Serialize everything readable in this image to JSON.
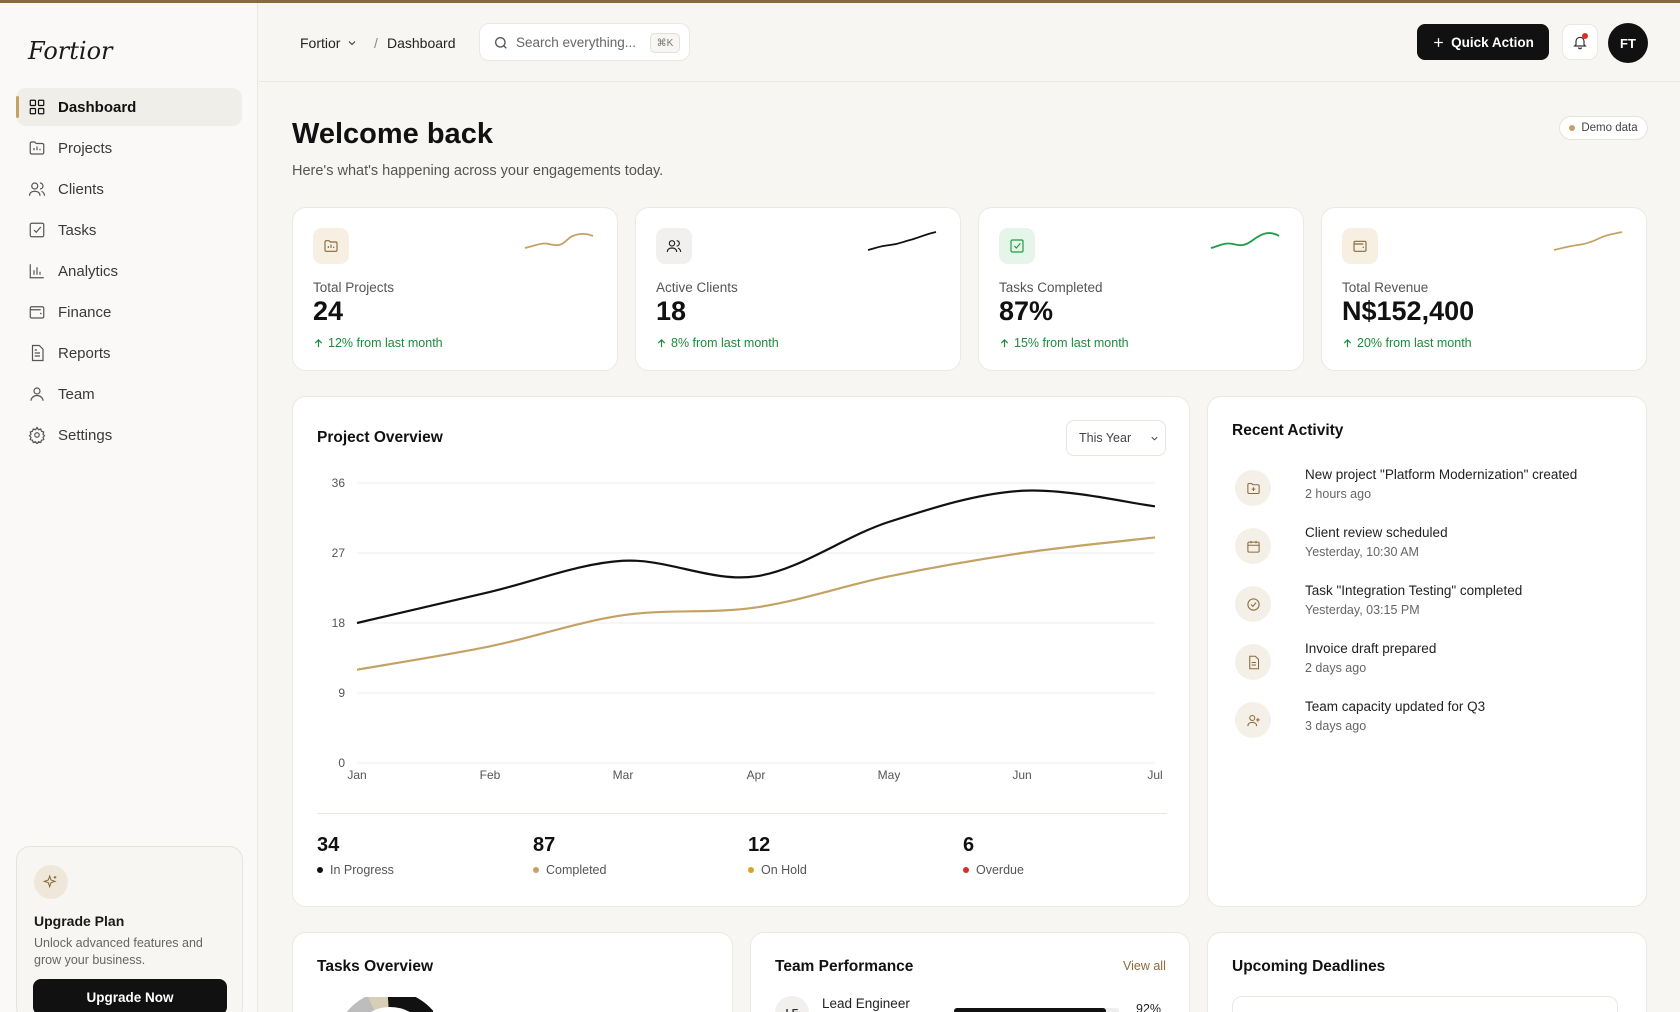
{
  "app": {
    "logo": "Fortior"
  },
  "sidebar": {
    "items": [
      {
        "label": "Dashboard",
        "icon": "grid-icon",
        "active": true
      },
      {
        "label": "Projects",
        "icon": "folder-icon"
      },
      {
        "label": "Clients",
        "icon": "users-icon"
      },
      {
        "label": "Tasks",
        "icon": "checkbox-icon"
      },
      {
        "label": "Analytics",
        "icon": "bar-chart-icon"
      },
      {
        "label": "Finance",
        "icon": "wallet-icon"
      },
      {
        "label": "Reports",
        "icon": "document-icon"
      },
      {
        "label": "Team",
        "icon": "user-icon"
      },
      {
        "label": "Settings",
        "icon": "gear-icon"
      }
    ],
    "upgrade": {
      "title": "Upgrade Plan",
      "description": "Unlock advanced features and grow your business.",
      "button": "Upgrade Now"
    }
  },
  "header": {
    "org": "Fortior",
    "breadcrumb_sep": "/",
    "page": "Dashboard",
    "search_placeholder": "Search everything...",
    "search_shortcut": "⌘K",
    "quick_action": "Quick Action",
    "avatar_initials": "FT"
  },
  "main": {
    "title": "Welcome back",
    "subtitle": "Here's what's happening across your engagements today.",
    "demo_badge": "Demo data",
    "stats": [
      {
        "label": "Total Projects",
        "value": "24",
        "change": "12% from last month",
        "accent": "#c4a265",
        "icon_bg": "#f6efe2"
      },
      {
        "label": "Active Clients",
        "value": "18",
        "change": "8% from last month",
        "accent": "#111111",
        "icon_bg": "#f1f0ee"
      },
      {
        "label": "Tasks Completed",
        "value": "87%",
        "change": "15% from last month",
        "accent": "#1e9e45",
        "icon_bg": "#e6f5ea"
      },
      {
        "label": "Total Revenue",
        "value": "N$152,400",
        "change": "20% from last month",
        "accent": "#c4a265",
        "icon_bg": "#f6efe2"
      }
    ],
    "overview": {
      "title": "Project Overview",
      "period": "This Year",
      "summary": [
        {
          "value": "34",
          "label": "In Progress",
          "color": "#111111"
        },
        {
          "value": "87",
          "label": "Completed",
          "color": "#c4a265"
        },
        {
          "value": "12",
          "label": "On Hold",
          "color": "#e0a025"
        },
        {
          "value": "6",
          "label": "Overdue",
          "color": "#d93025"
        }
      ]
    },
    "activity": {
      "title": "Recent Activity",
      "items": [
        {
          "title": "New project \"Platform Modernization\" created",
          "time": "2 hours ago",
          "icon": "folder-plus-icon"
        },
        {
          "title": "Client review scheduled",
          "time": "Yesterday, 10:30 AM",
          "icon": "calendar-icon"
        },
        {
          "title": "Task \"Integration Testing\" completed",
          "time": "Yesterday, 03:15 PM",
          "icon": "check-circle-icon"
        },
        {
          "title": "Invoice draft prepared",
          "time": "2 days ago",
          "icon": "document-icon"
        },
        {
          "title": "Team capacity updated for Q3",
          "time": "3 days ago",
          "icon": "user-plus-icon"
        }
      ]
    },
    "tasks_overview": {
      "title": "Tasks Overview"
    },
    "team_performance": {
      "title": "Team Performance",
      "view_all": "View all",
      "first_member": {
        "initials": "LE",
        "role": "Lead Engineer",
        "score": "92%",
        "score_value": 92
      }
    },
    "deadlines": {
      "title": "Upcoming Deadlines"
    }
  },
  "chart_data": {
    "type": "line",
    "categories": [
      "Jan",
      "Feb",
      "Mar",
      "Apr",
      "May",
      "Jun",
      "Jul"
    ],
    "ylim": [
      0,
      36
    ],
    "yticks": [
      0,
      9,
      18,
      27,
      36
    ],
    "grid": true,
    "series": [
      {
        "color": "#111111",
        "values": [
          18,
          22,
          26,
          24,
          31,
          35,
          33
        ]
      },
      {
        "color": "#c4a265",
        "values": [
          12,
          15,
          19,
          20,
          24,
          27,
          29
        ]
      }
    ]
  }
}
